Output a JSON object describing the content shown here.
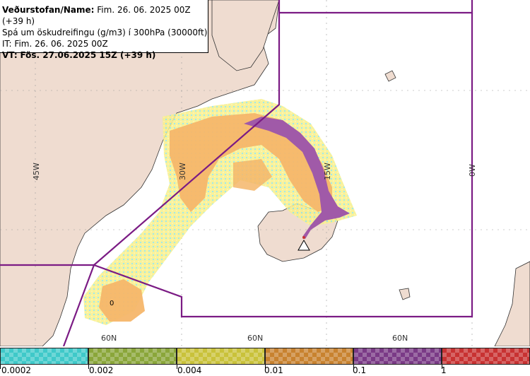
{
  "header": {
    "line1_label": "Veðurstofan/Name:",
    "line1_value": "Fim. 26. 06. 2025 00Z (+39 h)",
    "line2": "Spá um öskudreifingu (g/m3) í 300hPa (30000ft)",
    "line3": "IT: Fim. 26. 06. 2025 00Z",
    "line4_label": "VT:",
    "line4_value": "Fös. 27.06.2025 15Z (+39 h)"
  },
  "map_labels": {
    "lon_45w": "45W",
    "lon_30w": "30W",
    "lon_15w": "15W",
    "lon_0w": "0W",
    "lat_60n_a": "60N",
    "lat_60n_b": "60N",
    "lat_60n_c": "60N",
    "contour_zero": "0"
  },
  "colors": {
    "land": "#efdcd0",
    "sea": "#ffffff",
    "boundary": "#7b1b84",
    "grid": "#9a9a9a",
    "level1": "#7fe3e6",
    "level2": "#a9c64a",
    "level3": "#e6e36a",
    "level4": "#f5b66a",
    "level5": "#a05aa8",
    "level6": "#e03a3a"
  },
  "legend": {
    "levels": [
      {
        "label": "0.0002",
        "color": "#3fc9c9"
      },
      {
        "label": "0.002",
        "color": "#8aa63a"
      },
      {
        "label": "0.004",
        "color": "#c9c23a"
      },
      {
        "label": "0.01",
        "color": "#c8822f"
      },
      {
        "label": "0.1",
        "color": "#7a3a86"
      },
      {
        "label": "1",
        "color": "#c83232"
      }
    ]
  },
  "markers": {
    "volcano": "volcano-triangle-icon"
  }
}
